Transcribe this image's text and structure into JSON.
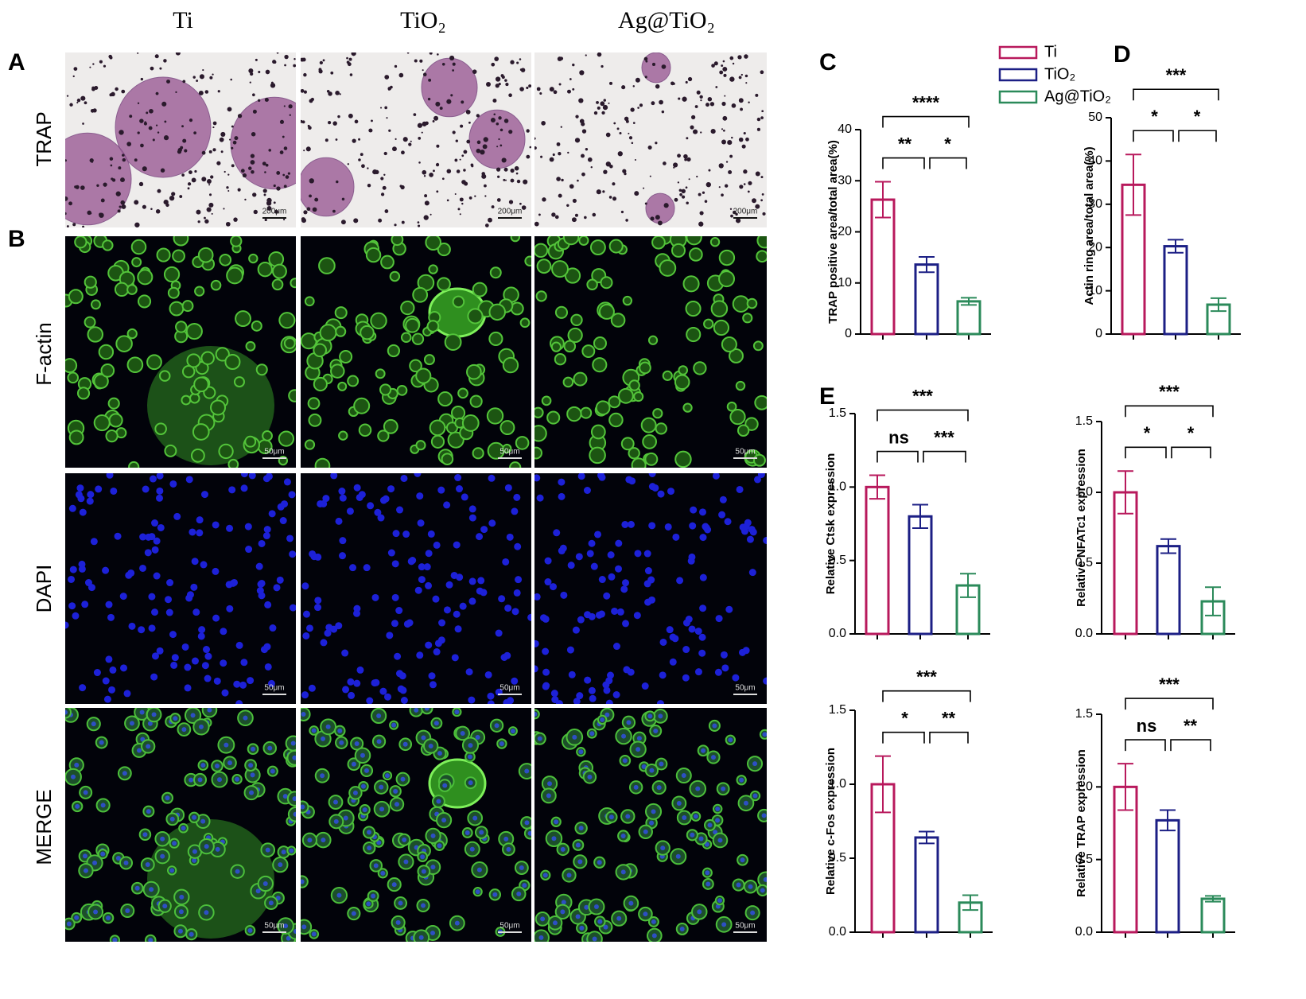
{
  "columns": [
    "Ti",
    "TiO₂",
    "Ag@TiO₂"
  ],
  "rows": [
    "TRAP",
    "F-actin",
    "DAPI",
    "MERGE"
  ],
  "panel_letters": [
    "A",
    "B",
    "C",
    "D",
    "E"
  ],
  "scale_bars": {
    "trap": "200μm",
    "fluorescence": "50μm"
  },
  "legend": [
    {
      "name": "Ti",
      "color": "#b8195c"
    },
    {
      "name": "TiO₂",
      "color": "#1c1f85"
    },
    {
      "name": "Ag@TiO₂",
      "color": "#2b8a5a"
    }
  ],
  "chart_data": [
    {
      "type": "bar",
      "ylabel": "TRAP positive area/total area(%)",
      "values": [
        26.3,
        13.6,
        6.4
      ],
      "errors": [
        3.5,
        1.5,
        0.7
      ],
      "ylim": [
        0,
        40
      ],
      "yticks": [
        0,
        10,
        20,
        30,
        40
      ],
      "significance": [
        "**",
        "*",
        "****"
      ]
    },
    {
      "type": "bar",
      "ylabel": "Actin ring area/total area(%)",
      "values": [
        34.5,
        20.3,
        6.8
      ],
      "errors": [
        7,
        1.5,
        1.5
      ],
      "ylim": [
        0,
        50
      ],
      "yticks": [
        0,
        10,
        20,
        30,
        40,
        50
      ],
      "significance": [
        "*",
        "*",
        "***"
      ]
    },
    {
      "type": "bar",
      "ylabel": "Relative Ctsk expression",
      "values": [
        1.0,
        0.8,
        0.33
      ],
      "errors": [
        0.08,
        0.08,
        0.08
      ],
      "ylim": [
        0,
        1.5
      ],
      "yticks": [
        {
          "value": 0,
          "label": "0.0"
        },
        0.5,
        {
          "value": 1,
          "label": "1.0"
        },
        1.5
      ],
      "significance": [
        "ns",
        "***",
        "***"
      ]
    },
    {
      "type": "bar",
      "ylabel": "Relative NFATc1 expression",
      "values": [
        1.0,
        0.62,
        0.23
      ],
      "errors": [
        0.15,
        0.05,
        0.1
      ],
      "ylim": [
        0,
        1.5
      ],
      "yticks": [
        {
          "value": 0,
          "label": "0.0"
        },
        0.5,
        {
          "value": 1,
          "label": "1.0"
        },
        1.5
      ],
      "significance": [
        "*",
        "*",
        "***"
      ]
    },
    {
      "type": "bar",
      "ylabel": "Relative c-Fos expression",
      "values": [
        1.0,
        0.64,
        0.2
      ],
      "errors": [
        0.19,
        0.04,
        0.05
      ],
      "ylim": [
        0,
        1.5
      ],
      "yticks": [
        {
          "value": 0,
          "label": "0.0"
        },
        0.5,
        {
          "value": 1,
          "label": "1.0"
        },
        1.5
      ],
      "significance": [
        "*",
        "**",
        "***"
      ]
    },
    {
      "type": "bar",
      "ylabel": "Relative TRAP expression",
      "values": [
        1.0,
        0.77,
        0.23
      ],
      "errors": [
        0.16,
        0.07,
        0.02
      ],
      "ylim": [
        0,
        1.5
      ],
      "yticks": [
        {
          "value": 0,
          "label": "0.0"
        },
        0.5,
        {
          "value": 1,
          "label": "1.0"
        },
        1.5
      ],
      "significance": [
        "ns",
        "**",
        "***"
      ]
    }
  ]
}
